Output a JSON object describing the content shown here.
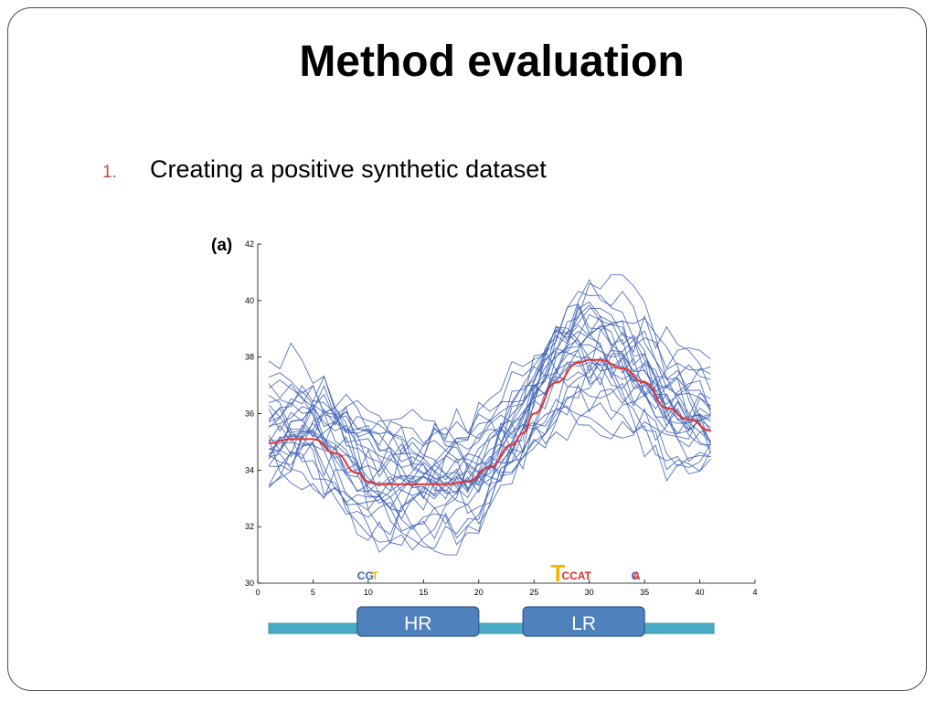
{
  "slide": {
    "title": "Method evaluation",
    "bullet_number": "1.",
    "bullet_text": "Creating a positive synthetic dataset",
    "colors": {
      "bullet_number": "#c0504d",
      "frame": "#4a4a4a"
    }
  },
  "chart_data": {
    "type": "line",
    "panel_label": "(a)",
    "title": "",
    "xlabel": "",
    "ylabel": "",
    "xlim": [
      0,
      45
    ],
    "ylim": [
      30,
      42
    ],
    "x_ticks": [
      "0",
      "5",
      "10",
      "15",
      "20",
      "25",
      "30",
      "35",
      "40",
      "4"
    ],
    "y_ticks": [
      "30",
      "32",
      "34",
      "36",
      "38",
      "40",
      "42"
    ],
    "grid": false,
    "mean_series": {
      "color": "#e8322f",
      "x": [
        1,
        3,
        5,
        7,
        9,
        10,
        11,
        13,
        15,
        17,
        19,
        21,
        23,
        24,
        25,
        27,
        29,
        30,
        31,
        33,
        35,
        37,
        39,
        41
      ],
      "y": [
        34.95,
        35.1,
        35.1,
        34.6,
        33.9,
        33.6,
        33.5,
        33.5,
        33.5,
        33.5,
        33.6,
        34.1,
        34.9,
        35.3,
        36.0,
        37.1,
        37.8,
        37.9,
        37.9,
        37.6,
        37.1,
        36.2,
        35.8,
        35.4
      ]
    },
    "individual_series": {
      "color": "#3f63b5",
      "count": 30,
      "x_start": 1,
      "x_end": 41
    },
    "sequence_logo": {
      "colors": {
        "A": "#e0302e",
        "C": "#3a5fb5",
        "G": "#2f8f3a",
        "T": "#f2b700"
      },
      "letters": [
        {
          "x": 9.0,
          "text": "CG",
          "color_key": "C"
        },
        {
          "x": 10.3,
          "text": "T",
          "color_key": "T"
        },
        {
          "x": 26.5,
          "text": "T",
          "color_key": "T"
        },
        {
          "x": 27.5,
          "text": "CCAT",
          "color_key": "A"
        },
        {
          "x": 33.8,
          "text": "C",
          "color_key": "C"
        },
        {
          "x": 33.9,
          "text": "A",
          "color_key": "A"
        }
      ]
    },
    "annotations": [
      {
        "label": "HR",
        "x_start": 9,
        "x_end": 20
      },
      {
        "label": "LR",
        "x_start": 24,
        "x_end": 35
      }
    ],
    "annotation_colors": {
      "box": "#4f81bd",
      "box_border": "#2e5a8a",
      "bar": "#4bacc6",
      "bar_border": "#2f8fa8",
      "text": "#ffffff"
    }
  }
}
